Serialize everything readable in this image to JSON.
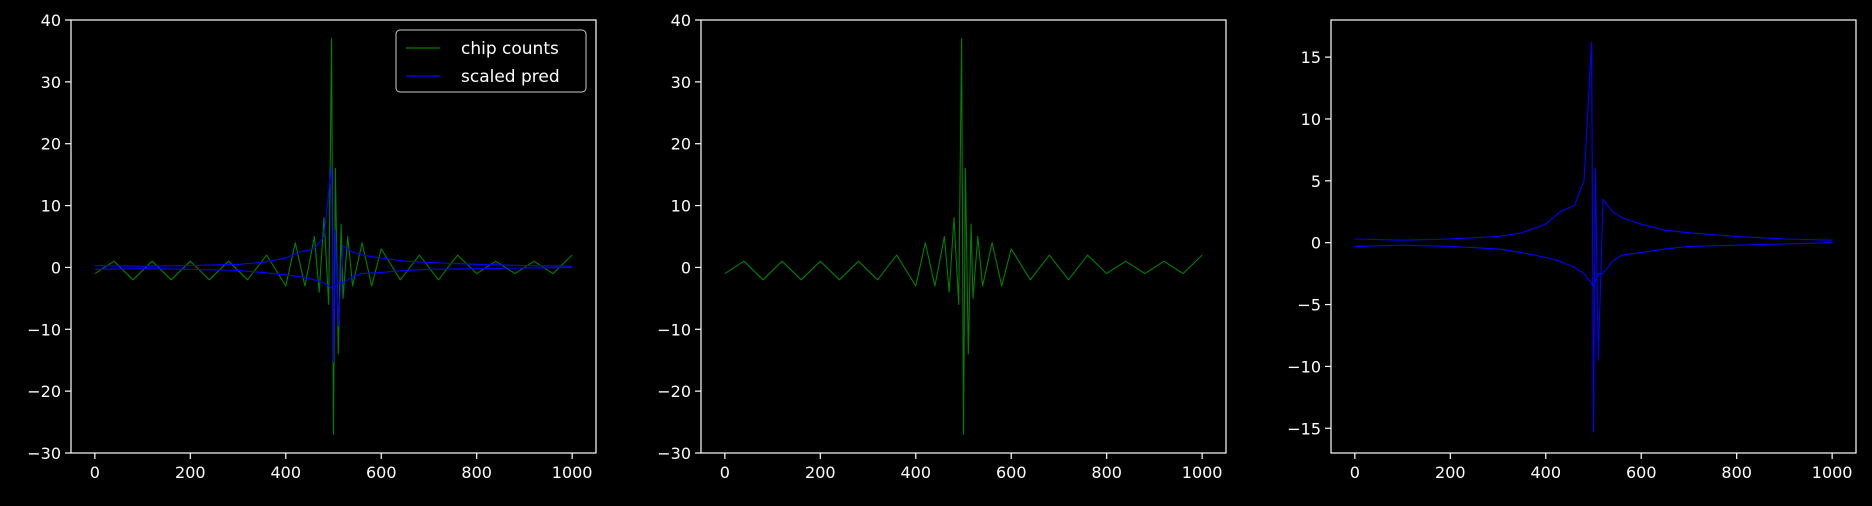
{
  "chart_data": [
    {
      "type": "line",
      "panel": "left",
      "title": "",
      "xlabel": "",
      "ylabel": "",
      "xlim": [
        -50,
        1050
      ],
      "ylim": [
        -30,
        40
      ],
      "xticks": [
        0,
        200,
        400,
        600,
        800,
        1000
      ],
      "yticks": [
        -30,
        -20,
        -10,
        0,
        10,
        20,
        30,
        40
      ],
      "legend": {
        "position": "top-right",
        "entries": [
          "chip counts",
          "scaled pred"
        ]
      },
      "series": [
        {
          "name": "chip counts",
          "color": "#008000",
          "x": [
            0,
            40,
            80,
            120,
            160,
            200,
            240,
            280,
            320,
            360,
            400,
            420,
            440,
            460,
            470,
            480,
            490,
            496,
            500,
            504,
            510,
            516,
            520,
            530,
            540,
            560,
            580,
            600,
            640,
            680,
            720,
            760,
            800,
            840,
            880,
            920,
            960,
            1000
          ],
          "y": [
            -1,
            1,
            -2,
            1,
            -2,
            1,
            -2,
            1,
            -2,
            2,
            -3,
            4,
            -3,
            5,
            -4,
            8,
            -6,
            37,
            -27,
            16,
            -14,
            7,
            -5,
            5,
            -3,
            4,
            -3,
            3,
            -2,
            2,
            -2,
            2,
            -1,
            1,
            -1,
            1,
            -1,
            2
          ]
        },
        {
          "name": "scaled pred",
          "color": "#0000ff",
          "x": [
            0,
            100,
            200,
            300,
            350,
            400,
            430,
            460,
            480,
            490,
            496,
            500,
            504,
            510,
            520,
            540,
            560,
            600,
            650,
            700,
            800,
            900,
            1000
          ],
          "y": [
            0.3,
            0.2,
            0.3,
            0.5,
            0.8,
            1.5,
            2.5,
            3.0,
            5.0,
            12.0,
            16.2,
            -15.3,
            6.0,
            -9.5,
            3.5,
            2.5,
            2.0,
            1.5,
            1.0,
            0.8,
            0.5,
            0.3,
            0.2
          ]
        },
        {
          "name": "",
          "color": "#0000ff",
          "x": [
            0,
            100,
            200,
            300,
            350,
            400,
            430,
            460,
            480,
            490,
            500,
            510,
            520,
            540,
            560,
            600,
            650,
            700,
            800,
            900,
            1000
          ],
          "y": [
            -0.3,
            -0.2,
            -0.3,
            -0.5,
            -0.8,
            -1.2,
            -1.5,
            -2.0,
            -2.5,
            -3.0,
            -3.5,
            -2.5,
            -2.5,
            -1.5,
            -1.0,
            -0.8,
            -0.5,
            -0.3,
            -0.2,
            -0.1,
            0.0
          ]
        }
      ]
    },
    {
      "type": "line",
      "panel": "middle",
      "title": "",
      "xlabel": "",
      "ylabel": "",
      "xlim": [
        -50,
        1050
      ],
      "ylim": [
        -30,
        40
      ],
      "xticks": [
        0,
        200,
        400,
        600,
        800,
        1000
      ],
      "yticks": [
        -30,
        -20,
        -10,
        0,
        10,
        20,
        30,
        40
      ],
      "series": [
        {
          "name": "",
          "color": "#008000",
          "x": [
            0,
            40,
            80,
            120,
            160,
            200,
            240,
            280,
            320,
            360,
            400,
            420,
            440,
            460,
            470,
            480,
            490,
            496,
            500,
            504,
            510,
            516,
            520,
            530,
            540,
            560,
            580,
            600,
            640,
            680,
            720,
            760,
            800,
            840,
            880,
            920,
            960,
            1000
          ],
          "y": [
            -1,
            1,
            -2,
            1,
            -2,
            1,
            -2,
            1,
            -2,
            2,
            -3,
            4,
            -3,
            5,
            -4,
            8,
            -6,
            37,
            -27,
            16,
            -14,
            7,
            -5,
            5,
            -3,
            4,
            -3,
            3,
            -2,
            2,
            -2,
            2,
            -1,
            1,
            -1,
            1,
            -1,
            2
          ]
        }
      ]
    },
    {
      "type": "line",
      "panel": "right",
      "title": "",
      "xlabel": "",
      "ylabel": "",
      "xlim": [
        -50,
        1050
      ],
      "ylim": [
        -17,
        18
      ],
      "xticks": [
        0,
        200,
        400,
        600,
        800,
        1000
      ],
      "yticks": [
        -15,
        -10,
        -5,
        0,
        5,
        10,
        15
      ],
      "series": [
        {
          "name": "",
          "color": "#0000ff",
          "x": [
            0,
            100,
            200,
            300,
            350,
            400,
            430,
            460,
            480,
            490,
            496,
            500,
            504,
            510,
            520,
            540,
            560,
            600,
            650,
            700,
            800,
            900,
            1000
          ],
          "y": [
            0.3,
            0.2,
            0.3,
            0.5,
            0.8,
            1.5,
            2.5,
            3.0,
            5.0,
            12.0,
            16.2,
            -15.3,
            6.0,
            -9.5,
            3.5,
            2.5,
            2.0,
            1.5,
            1.0,
            0.8,
            0.5,
            0.3,
            0.2
          ]
        },
        {
          "name": "",
          "color": "#0000ff",
          "x": [
            0,
            100,
            200,
            300,
            350,
            400,
            430,
            460,
            480,
            490,
            500,
            510,
            520,
            540,
            560,
            600,
            650,
            700,
            800,
            900,
            1000
          ],
          "y": [
            -0.3,
            -0.2,
            -0.3,
            -0.5,
            -0.8,
            -1.2,
            -1.5,
            -2.0,
            -2.5,
            -3.0,
            -3.5,
            -2.5,
            -2.5,
            -1.5,
            -1.0,
            -0.8,
            -0.5,
            -0.3,
            -0.2,
            -0.1,
            0.0
          ]
        }
      ]
    }
  ]
}
